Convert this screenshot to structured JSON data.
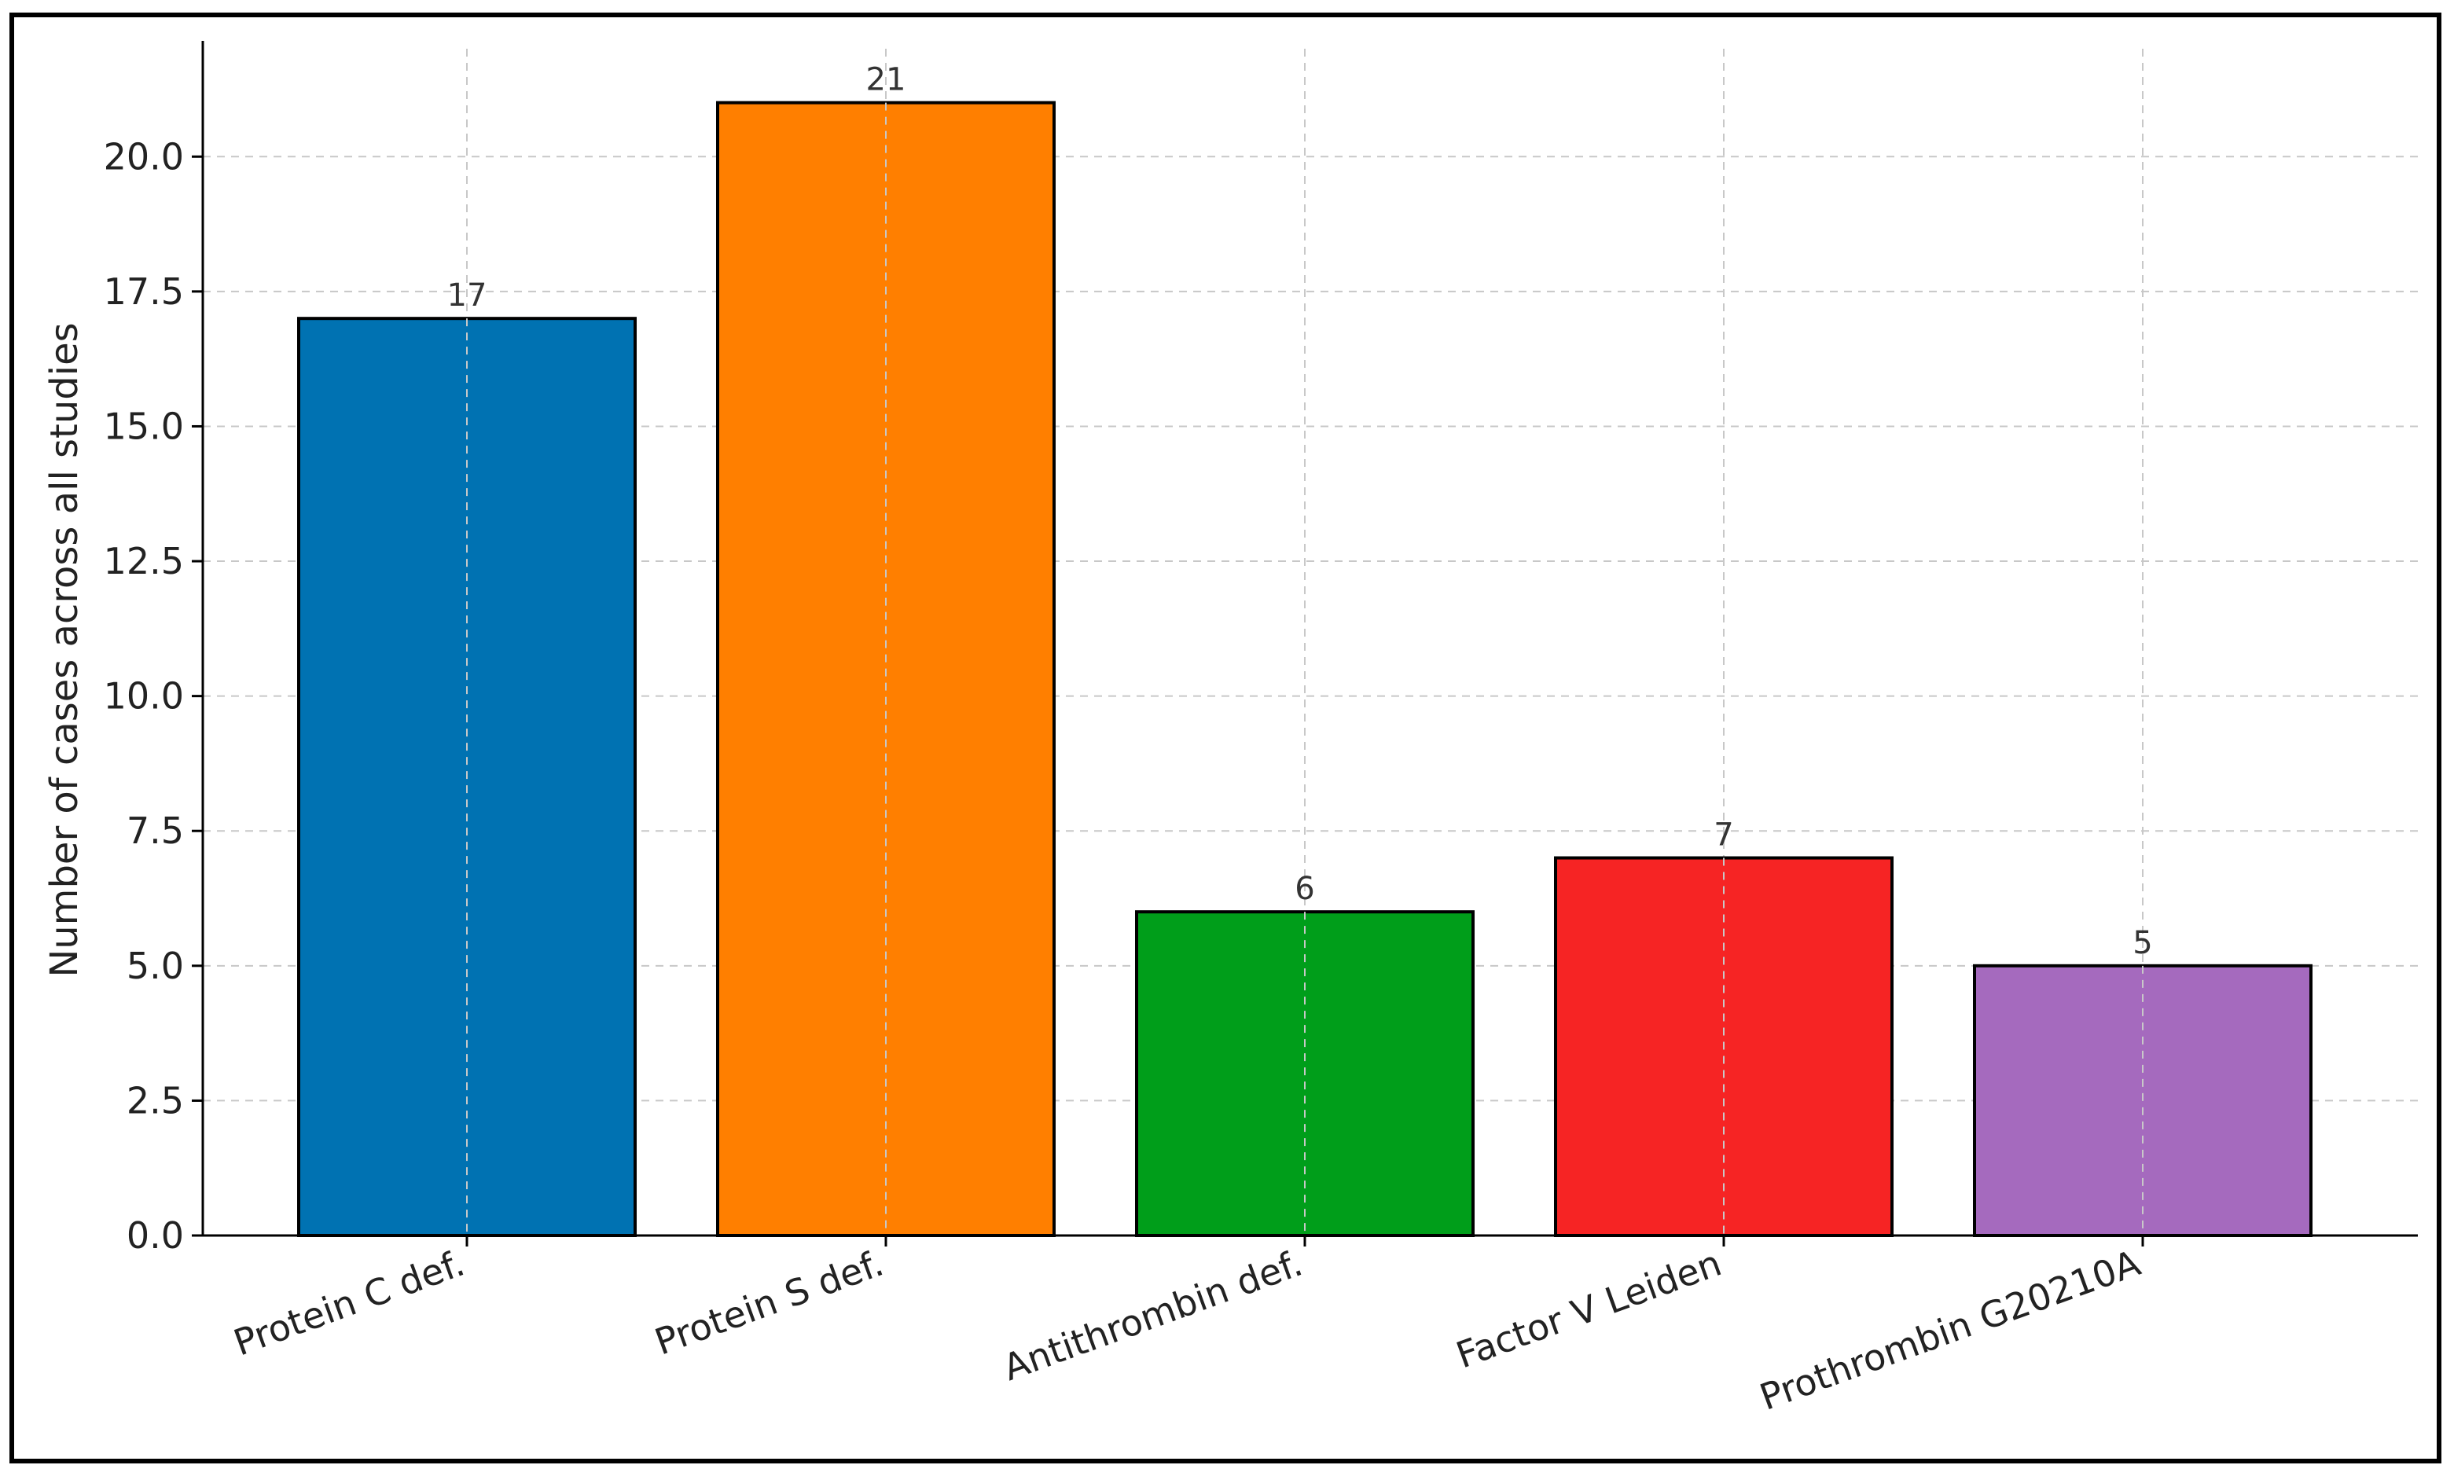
{
  "chart_data": {
    "type": "bar",
    "title": "",
    "xlabel": "",
    "ylabel": "Number of cases across all studies",
    "categories": [
      "Protein C def.",
      "Protein S def.",
      "Antithrombin def.",
      "Factor V Leiden",
      "Prothrombin G20210A"
    ],
    "values": [
      17,
      21,
      6,
      7,
      5
    ],
    "data_labels": [
      "17",
      "21",
      "6",
      "7",
      "5"
    ],
    "colors": [
      "#0072B2",
      "#FF7F00",
      "#009E1A",
      "#F62424",
      "#A56ABE"
    ],
    "ylim": [
      0,
      22
    ],
    "yticks": [
      0.0,
      2.5,
      5.0,
      7.5,
      10.0,
      12.5,
      15.0,
      17.5,
      20.0
    ],
    "ytick_labels": [
      "0.0",
      "2.5",
      "5.0",
      "7.5",
      "10.0",
      "12.5",
      "15.0",
      "17.5",
      "20.0"
    ],
    "grid": true,
    "legend": false
  }
}
